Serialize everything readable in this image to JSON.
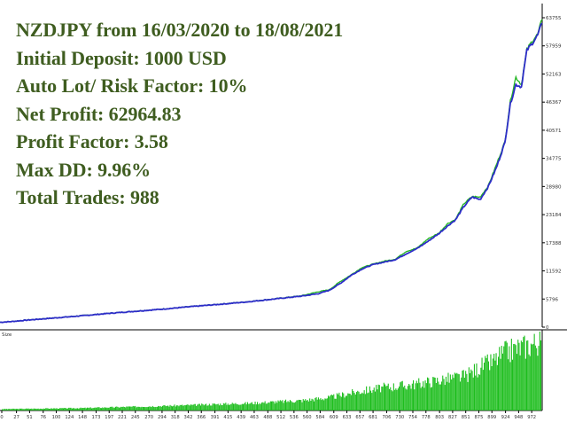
{
  "colors": {
    "background": "#ffffff",
    "balance_line": "#2d2dc8",
    "equity_line": "#22b522",
    "lot_bars": "#1ebe1e",
    "stats_text": "#3f5d20",
    "axis": "#000000",
    "tick_text": "#333333"
  },
  "stats": [
    "NZDJPY from 16/03/2020 to 18/08/2021",
    "Initial Deposit: 1000 USD",
    "Auto Lot/ Risk Factor: 10%",
    "Net Profit: 62964.83",
    "Profit Factor: 3.58",
    "Max DD: 9.96%",
    "Total Trades: 988"
  ],
  "chart_data": [
    {
      "type": "line",
      "panel": "balance",
      "yticks": [
        63755,
        57959,
        52163,
        46367,
        40571,
        34775,
        28980,
        23184,
        17388,
        11592,
        5796,
        0
      ],
      "ylim": [
        0,
        63755
      ],
      "xlim": [
        0,
        988
      ],
      "series": [
        {
          "role": "balance",
          "color": "#2d2dc8",
          "x": [
            0,
            20,
            50,
            100,
            150,
            200,
            250,
            300,
            350,
            400,
            450,
            500,
            550,
            580,
            600,
            620,
            640,
            660,
            680,
            700,
            720,
            740,
            760,
            780,
            800,
            815,
            830,
            845,
            860,
            875,
            890,
            905,
            920,
            930,
            940,
            950,
            960,
            970,
            980,
            988
          ],
          "y": [
            1000,
            1150,
            1450,
            1900,
            2350,
            2850,
            3300,
            3750,
            4250,
            4700,
            5200,
            5800,
            6400,
            6900,
            7600,
            9000,
            10700,
            12000,
            12900,
            13400,
            13900,
            15100,
            16200,
            17700,
            19300,
            20800,
            22100,
            24800,
            26800,
            26300,
            29000,
            33000,
            38000,
            46000,
            50000,
            49500,
            57000,
            58500,
            60200,
            62800
          ]
        },
        {
          "role": "equity",
          "color": "#22b522",
          "x": [
            0,
            20,
            50,
            100,
            150,
            200,
            250,
            300,
            350,
            400,
            450,
            500,
            550,
            580,
            600,
            620,
            640,
            660,
            680,
            700,
            720,
            740,
            760,
            780,
            800,
            815,
            830,
            845,
            860,
            875,
            890,
            905,
            920,
            930,
            940,
            950,
            960,
            970,
            980,
            988
          ],
          "y": [
            1000,
            1180,
            1480,
            1930,
            2390,
            2880,
            3330,
            3790,
            4280,
            4740,
            5240,
            5850,
            6480,
            7300,
            7700,
            9400,
            10800,
            12300,
            13000,
            13600,
            14000,
            15600,
            16300,
            18200,
            19400,
            21300,
            22200,
            25400,
            26900,
            26800,
            29200,
            33600,
            38200,
            46600,
            51500,
            50000,
            57200,
            59000,
            60400,
            63600
          ]
        }
      ]
    },
    {
      "type": "bar",
      "panel": "lots",
      "ylabel": "Size",
      "xticks": [
        0,
        27,
        51,
        76,
        100,
        124,
        148,
        173,
        197,
        221,
        245,
        270,
        294,
        318,
        342,
        366,
        391,
        415,
        439,
        463,
        488,
        512,
        536,
        560,
        584,
        609,
        633,
        657,
        681,
        706,
        730,
        754,
        778,
        803,
        827,
        851,
        875,
        899,
        924,
        948,
        972
      ],
      "xlim": [
        0,
        988
      ],
      "series": [
        {
          "role": "lot size relative to maximum",
          "x": [
            0,
            50,
            100,
            150,
            200,
            250,
            300,
            350,
            400,
            450,
            500,
            550,
            600,
            650,
            700,
            750,
            800,
            850,
            880,
            900,
            920,
            940,
            960,
            988
          ],
          "values": [
            0.02,
            0.025,
            0.03,
            0.035,
            0.045,
            0.055,
            0.065,
            0.075,
            0.09,
            0.1,
            0.12,
            0.14,
            0.18,
            0.26,
            0.32,
            0.36,
            0.42,
            0.48,
            0.62,
            0.68,
            0.8,
            0.86,
            0.9,
            0.97
          ]
        }
      ]
    }
  ]
}
